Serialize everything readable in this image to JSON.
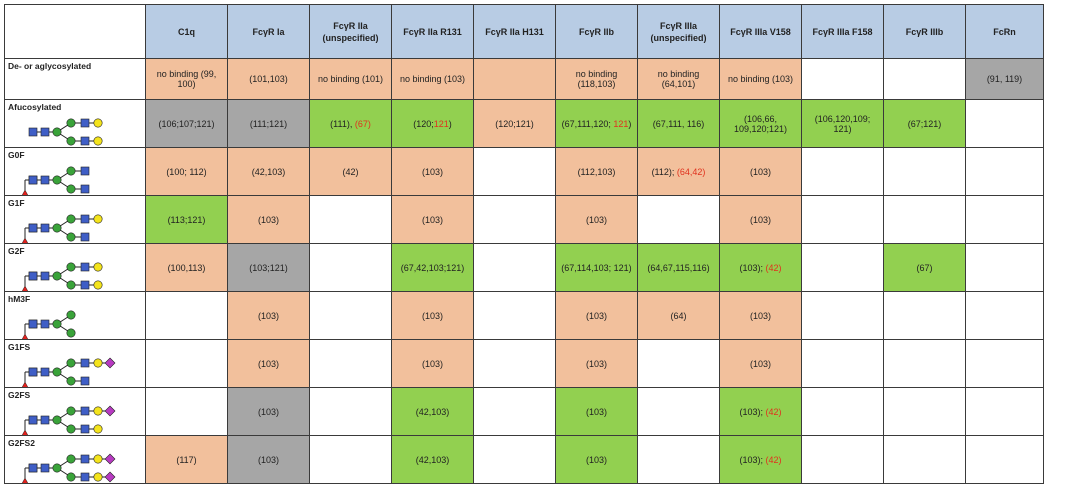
{
  "columns": [
    "C1q",
    "FcγR Ia",
    "FcγR IIa (unspecified)",
    "FcγR IIa R131",
    "FcγR IIa H131",
    "FcγR IIb",
    "FcγR IIIa (unspecified)",
    "FcγR IIIa V158",
    "FcγR IIIa F158",
    "FcγR IIIb",
    "FcRn"
  ],
  "colors": {
    "orange": "#f2c09c",
    "green": "#92d050",
    "grey": "#a6a6a6",
    "white": "#ffffff",
    "red_text": "#e0321e",
    "header": "#b8cce4"
  },
  "rows": [
    {
      "label": "De- or aglycosylated",
      "glycan": "none",
      "cells": [
        {
          "c": "orange",
          "t": "no binding (99, 100)"
        },
        {
          "c": "orange",
          "t": "(101,103)"
        },
        {
          "c": "orange",
          "t": "no binding (101)"
        },
        {
          "c": "orange",
          "t": "no binding (103)"
        },
        {
          "c": "orange",
          "t": ""
        },
        {
          "c": "orange",
          "t": "no binding (118,103)"
        },
        {
          "c": "orange",
          "t": "no binding (64,101)"
        },
        {
          "c": "orange",
          "t": "no binding (103)"
        },
        {
          "c": "white",
          "t": ""
        },
        {
          "c": "white",
          "t": ""
        },
        {
          "c": "grey",
          "t": "(91, 119)"
        }
      ]
    },
    {
      "label": "Afucosylated",
      "glycan": "G2",
      "cells": [
        {
          "c": "grey",
          "t": "(106;107;121)"
        },
        {
          "c": "grey",
          "t": "(111;121)"
        },
        {
          "c": "green",
          "t": "(111), ",
          "r": "(67)"
        },
        {
          "c": "green",
          "t": "(120;",
          "r": "121",
          "s": ")"
        },
        {
          "c": "orange",
          "t": "(120;121)"
        },
        {
          "c": "green",
          "t": "(67,111,120; ",
          "r": "121",
          "s": ")"
        },
        {
          "c": "green",
          "t": "(67,111, 116)"
        },
        {
          "c": "green",
          "t": "(106,66, 109,120;121)"
        },
        {
          "c": "green",
          "t": "(106,120,109; 121)"
        },
        {
          "c": "green",
          "t": "(67;121)"
        },
        {
          "c": "white",
          "t": ""
        }
      ]
    },
    {
      "label": "G0F",
      "glycan": "G0F",
      "cells": [
        {
          "c": "orange",
          "t": "(100; 112)"
        },
        {
          "c": "orange",
          "t": "(42,103)"
        },
        {
          "c": "orange",
          "t": "(42)"
        },
        {
          "c": "orange",
          "t": "(103)"
        },
        {
          "c": "white",
          "t": ""
        },
        {
          "c": "orange",
          "t": "(112,103)"
        },
        {
          "c": "orange",
          "t": "(112); ",
          "r": "(64,42)"
        },
        {
          "c": "orange",
          "t": "(103)"
        },
        {
          "c": "white",
          "t": ""
        },
        {
          "c": "white",
          "t": ""
        },
        {
          "c": "white",
          "t": ""
        }
      ]
    },
    {
      "label": "G1F",
      "glycan": "G1F",
      "cells": [
        {
          "c": "green",
          "t": "(113;121)"
        },
        {
          "c": "orange",
          "t": "(103)"
        },
        {
          "c": "white",
          "t": ""
        },
        {
          "c": "orange",
          "t": "(103)"
        },
        {
          "c": "white",
          "t": ""
        },
        {
          "c": "orange",
          "t": "(103)"
        },
        {
          "c": "white",
          "t": ""
        },
        {
          "c": "orange",
          "t": "(103)"
        },
        {
          "c": "white",
          "t": ""
        },
        {
          "c": "white",
          "t": ""
        },
        {
          "c": "white",
          "t": ""
        }
      ]
    },
    {
      "label": "G2F",
      "glycan": "G2F",
      "cells": [
        {
          "c": "orange",
          "t": "(100,113)"
        },
        {
          "c": "grey",
          "t": "(103;121)"
        },
        {
          "c": "white",
          "t": ""
        },
        {
          "c": "green",
          "t": "(67,42,103;121)"
        },
        {
          "c": "white",
          "t": ""
        },
        {
          "c": "green",
          "t": "(67,114,103; 121)"
        },
        {
          "c": "green",
          "t": "(64,67,115,116)"
        },
        {
          "c": "green",
          "t": "(103); ",
          "r": "(42)"
        },
        {
          "c": "white",
          "t": ""
        },
        {
          "c": "green",
          "t": "(67)"
        },
        {
          "c": "white",
          "t": ""
        }
      ]
    },
    {
      "label": "hM3F",
      "glycan": "hM3F",
      "cells": [
        {
          "c": "white",
          "t": ""
        },
        {
          "c": "orange",
          "t": "(103)"
        },
        {
          "c": "white",
          "t": ""
        },
        {
          "c": "orange",
          "t": "(103)"
        },
        {
          "c": "white",
          "t": ""
        },
        {
          "c": "orange",
          "t": "(103)"
        },
        {
          "c": "orange",
          "t": "(64)"
        },
        {
          "c": "orange",
          "t": "(103)"
        },
        {
          "c": "white",
          "t": ""
        },
        {
          "c": "white",
          "t": ""
        },
        {
          "c": "white",
          "t": ""
        }
      ]
    },
    {
      "label": "G1FS",
      "glycan": "G1FS",
      "cells": [
        {
          "c": "white",
          "t": ""
        },
        {
          "c": "orange",
          "t": "(103)"
        },
        {
          "c": "white",
          "t": ""
        },
        {
          "c": "orange",
          "t": "(103)"
        },
        {
          "c": "white",
          "t": ""
        },
        {
          "c": "orange",
          "t": "(103)"
        },
        {
          "c": "white",
          "t": ""
        },
        {
          "c": "orange",
          "t": "(103)"
        },
        {
          "c": "white",
          "t": ""
        },
        {
          "c": "white",
          "t": ""
        },
        {
          "c": "white",
          "t": ""
        }
      ]
    },
    {
      "label": "G2FS",
      "glycan": "G2FS",
      "cells": [
        {
          "c": "white",
          "t": ""
        },
        {
          "c": "grey",
          "t": "(103)"
        },
        {
          "c": "white",
          "t": ""
        },
        {
          "c": "green",
          "t": "(42,103)"
        },
        {
          "c": "white",
          "t": ""
        },
        {
          "c": "green",
          "t": "(103)"
        },
        {
          "c": "white",
          "t": ""
        },
        {
          "c": "green",
          "t": "(103); ",
          "r": "(42)"
        },
        {
          "c": "white",
          "t": ""
        },
        {
          "c": "white",
          "t": ""
        },
        {
          "c": "white",
          "t": ""
        }
      ]
    },
    {
      "label": "G2FS2",
      "glycan": "G2FS2",
      "cells": [
        {
          "c": "orange",
          "t": "(117)"
        },
        {
          "c": "grey",
          "t": "(103)"
        },
        {
          "c": "white",
          "t": ""
        },
        {
          "c": "green",
          "t": "(42,103)"
        },
        {
          "c": "white",
          "t": ""
        },
        {
          "c": "green",
          "t": "(103)"
        },
        {
          "c": "white",
          "t": ""
        },
        {
          "c": "green",
          "t": "(103); ",
          "r": "(42)"
        },
        {
          "c": "white",
          "t": ""
        },
        {
          "c": "white",
          "t": ""
        },
        {
          "c": "white",
          "t": ""
        }
      ]
    }
  ]
}
